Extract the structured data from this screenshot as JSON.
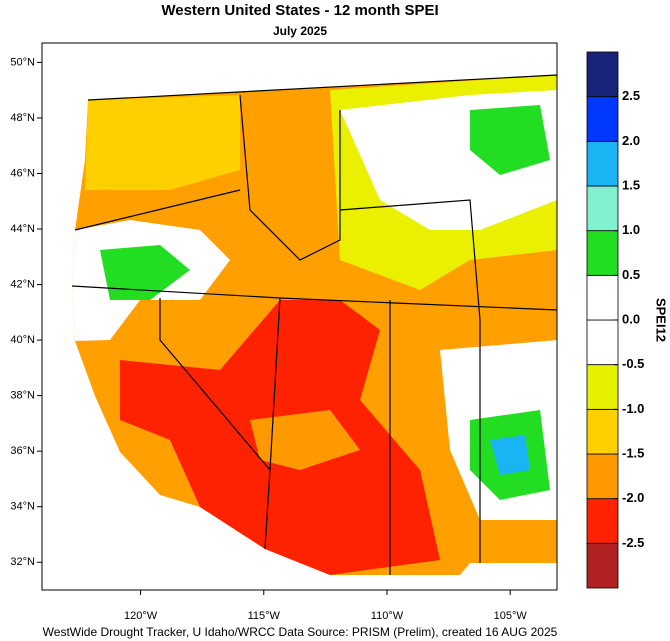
{
  "chart_data": {
    "type": "map",
    "title": "Western United States - 12 month SPEI",
    "subtitle": "July 2025",
    "xlim": [
      -124,
      -103.1
    ],
    "ylim": [
      31,
      50.7
    ],
    "xticks": [
      {
        "value": -120,
        "label": "120°W"
      },
      {
        "value": -115,
        "label": "115°W"
      },
      {
        "value": -110,
        "label": "110°W"
      },
      {
        "value": -105,
        "label": "105°W"
      }
    ],
    "yticks": [
      {
        "value": 32,
        "label": "32°N"
      },
      {
        "value": 34,
        "label": "34°N"
      },
      {
        "value": 36,
        "label": "36°N"
      },
      {
        "value": 38,
        "label": "38°N"
      },
      {
        "value": 40,
        "label": "40°N"
      },
      {
        "value": 42,
        "label": "42°N"
      },
      {
        "value": 44,
        "label": "44°N"
      },
      {
        "value": 46,
        "label": "46°N"
      },
      {
        "value": 48,
        "label": "48°N"
      },
      {
        "value": 50,
        "label": "50°N"
      }
    ],
    "colorbar": {
      "label": "SPEI12",
      "lim": [
        -3,
        3
      ],
      "levels": [
        -3,
        -2.5,
        -2,
        -1.5,
        -1,
        -0.5,
        0,
        0.5,
        1,
        1.5,
        2,
        2.5,
        3
      ],
      "colors": [
        "#b22222",
        "#ff2200",
        "#ff9900",
        "#ffd000",
        "#e6f000",
        "#ffffff",
        "#ffffff",
        "#22dd22",
        "#80f0d0",
        "#1ab4f5",
        "#0038ff",
        "#1a237a"
      ],
      "ticks": [
        -2.5,
        {
          "value": -2,
          "label": "-2.0"
        },
        -1.5,
        {
          "value": -1,
          "label": "-1.0"
        },
        -0.5,
        {
          "value": 0,
          "label": "0.0"
        },
        0.5,
        {
          "value": 1,
          "label": "1.0"
        },
        1.5,
        {
          "value": 2,
          "label": "2.0"
        },
        2.5
      ]
    },
    "credit": "WestWide Drought Tracker, U Idaho/WRCC Data Source: PRISM (Prelim), created 16 AUG 2025"
  }
}
